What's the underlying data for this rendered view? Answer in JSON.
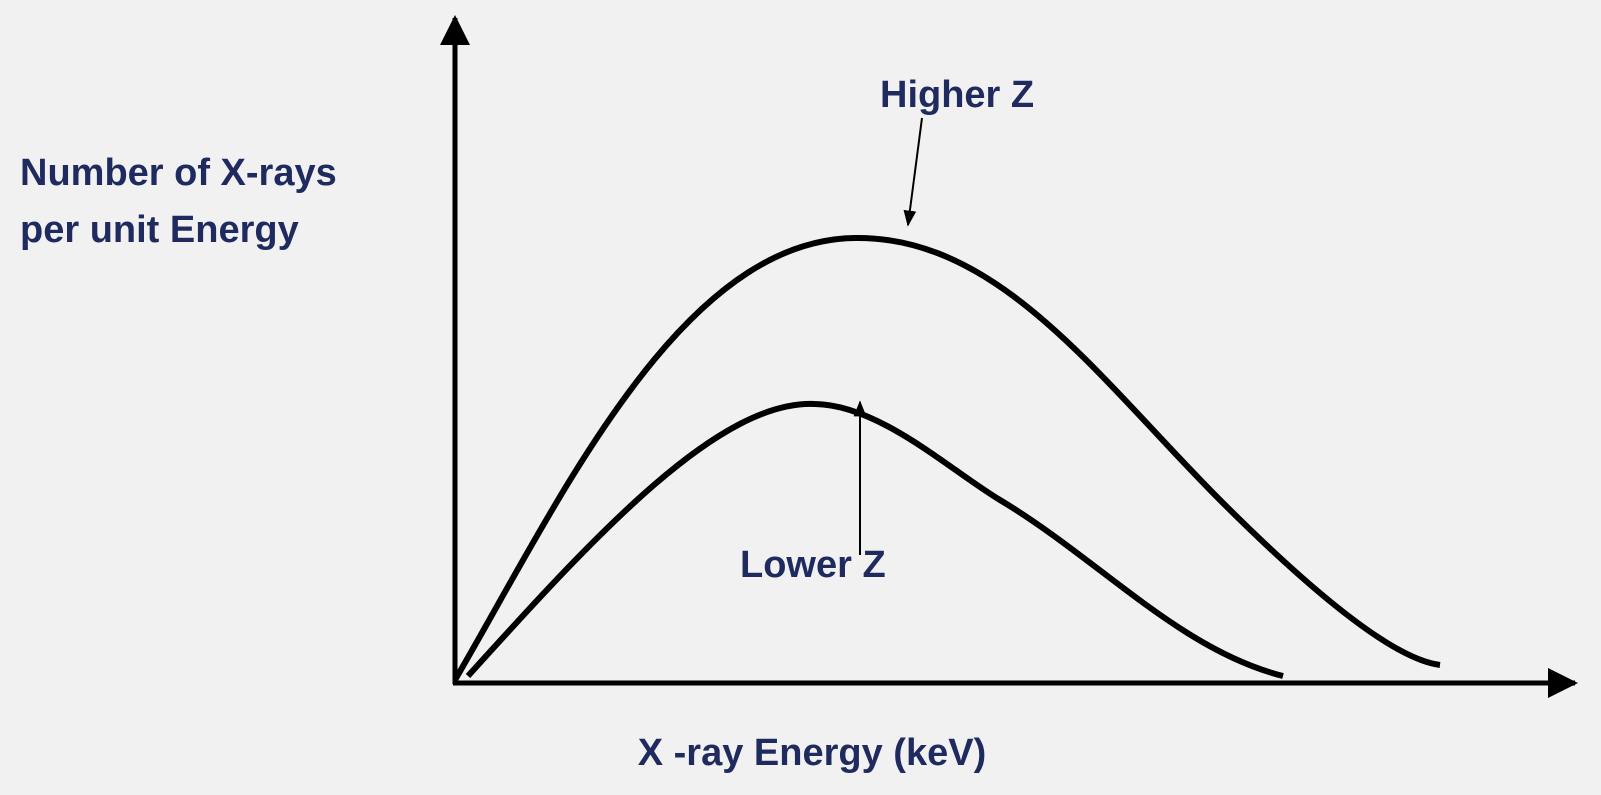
{
  "y_axis_label": [
    "Number of X-rays",
    "per unit Energy"
  ],
  "x_axis_label": "X -ray Energy (keV)",
  "annotations": [
    "Higher Z",
    "Lower Z"
  ]
}
